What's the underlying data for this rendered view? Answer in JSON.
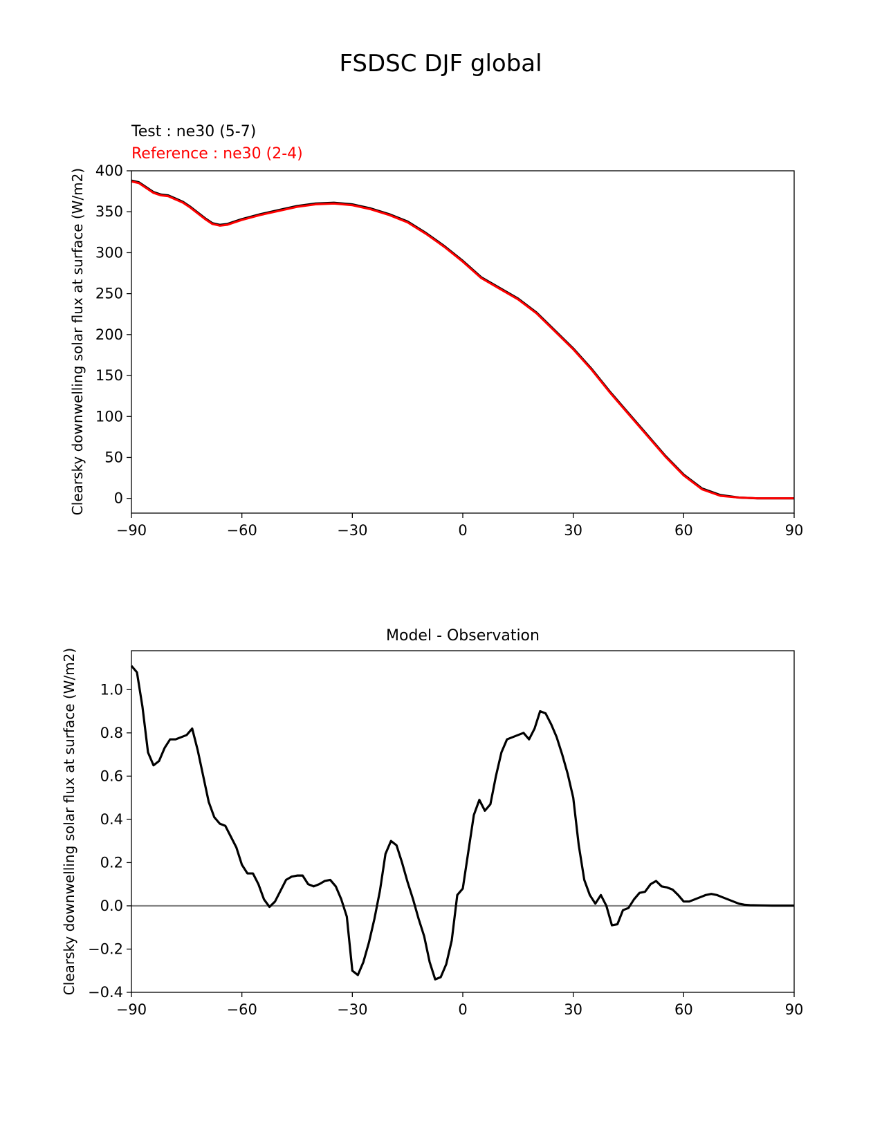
{
  "figure": {
    "suptitle": "FSDSC DJF global"
  },
  "chart_data": [
    {
      "type": "line",
      "title": "",
      "test_label": "Test : ne30 (5-7)",
      "reference_label": "Reference : ne30 (2-4)",
      "xlabel": "",
      "ylabel": "Clearsky downwelling solar flux at surface (W/m2)",
      "xlim": [
        -90,
        90
      ],
      "ylim": [
        -18,
        400
      ],
      "xticks": [
        -90,
        -60,
        -30,
        0,
        30,
        60,
        90
      ],
      "xtick_labels": [
        "−90",
        "−60",
        "−30",
        "0",
        "30",
        "60",
        "90"
      ],
      "yticks": [
        0,
        50,
        100,
        150,
        200,
        250,
        300,
        350,
        400
      ],
      "ytick_labels": [
        "0",
        "50",
        "100",
        "150",
        "200",
        "250",
        "300",
        "350",
        "400"
      ],
      "grid": false,
      "colors": {
        "test": "#000000",
        "reference": "#ff0000"
      },
      "series": [
        {
          "x": [
            -90,
            -88,
            -86,
            -84,
            -82,
            -80,
            -78,
            -76,
            -74,
            -72,
            -70,
            -68,
            -66,
            -64,
            -62,
            -60,
            -55,
            -50,
            -45,
            -40,
            -35,
            -30,
            -25,
            -20,
            -15,
            -10,
            -5,
            0,
            5,
            10,
            15,
            20,
            25,
            30,
            35,
            40,
            45,
            50,
            55,
            60,
            65,
            70,
            75,
            80,
            85,
            90
          ],
          "y": [
            388,
            386,
            380,
            374,
            371,
            370,
            366,
            362,
            356,
            349,
            342,
            336,
            334,
            335,
            338,
            341,
            347,
            352,
            357,
            360,
            361,
            359,
            354,
            347,
            338,
            324,
            308,
            290,
            270,
            257,
            244,
            227,
            205,
            183,
            158,
            130,
            104,
            78,
            52,
            29,
            12,
            4,
            1,
            0,
            0,
            0
          ],
          "role": "test"
        },
        {
          "x": [
            -90,
            -88,
            -86,
            -84,
            -82,
            -80,
            -78,
            -76,
            -74,
            -72,
            -70,
            -68,
            -66,
            -64,
            -62,
            -60,
            -55,
            -50,
            -45,
            -40,
            -35,
            -30,
            -25,
            -20,
            -15,
            -10,
            -5,
            0,
            5,
            10,
            15,
            20,
            25,
            30,
            35,
            40,
            45,
            50,
            55,
            60,
            65,
            70,
            75,
            80,
            85,
            90
          ],
          "y": [
            387,
            385,
            379,
            373,
            370,
            369,
            365,
            361,
            355,
            348,
            341,
            335,
            333,
            334,
            337,
            340,
            346,
            351,
            356,
            359,
            360,
            358,
            353,
            346,
            337,
            323,
            307,
            289,
            269,
            256,
            243,
            226,
            204,
            182,
            157,
            129,
            103,
            77,
            51,
            28,
            11,
            3,
            1,
            0,
            0,
            0
          ],
          "role": "reference"
        }
      ]
    },
    {
      "type": "line",
      "title": "Model - Observation",
      "xlabel": "",
      "ylabel": "Clearsky downwelling solar flux at surface (W/m2)",
      "xlim": [
        -90,
        90
      ],
      "ylim": [
        -0.4,
        1.18
      ],
      "xticks": [
        -90,
        -60,
        -30,
        0,
        30,
        60,
        90
      ],
      "xtick_labels": [
        "−90",
        "−60",
        "−30",
        "0",
        "30",
        "60",
        "90"
      ],
      "yticks": [
        -0.4,
        -0.2,
        0.0,
        0.2,
        0.4,
        0.6,
        0.8,
        1.0
      ],
      "ytick_labels": [
        "−0.4",
        "−0.2",
        "0.0",
        "0.2",
        "0.4",
        "0.6",
        "0.8",
        "1.0"
      ],
      "grid": false,
      "zero_line": 0,
      "colors": {
        "difference": "#000000",
        "zero_line": "#808080"
      },
      "series": [
        {
          "x": [
            -90,
            -88.5,
            -87,
            -85.5,
            -84,
            -82.5,
            -81,
            -79.5,
            -78,
            -76.5,
            -75,
            -73.5,
            -72,
            -70.5,
            -69,
            -67.5,
            -66,
            -64.5,
            -63,
            -61.5,
            -60,
            -58.5,
            -57,
            -55.5,
            -54,
            -52.5,
            -51,
            -49.5,
            -48,
            -46.5,
            -45,
            -43.5,
            -42,
            -40.5,
            -39,
            -37.5,
            -36,
            -34.5,
            -33,
            -31.5,
            -30,
            -28.5,
            -27,
            -25.5,
            -24,
            -22.5,
            -21,
            -19.5,
            -18,
            -16.5,
            -15,
            -13.5,
            -12,
            -10.5,
            -9,
            -7.5,
            -6,
            -4.5,
            -3,
            -1.5,
            0,
            1.5,
            3,
            4.5,
            6,
            7.5,
            9,
            10.5,
            12,
            13.5,
            15,
            16.5,
            18,
            19.5,
            21,
            22.5,
            24,
            25.5,
            27,
            28.5,
            30,
            31.5,
            33,
            34.5,
            36,
            37.5,
            39,
            40.5,
            42,
            43.5,
            45,
            46.5,
            48,
            49.5,
            51,
            52.5,
            54,
            55.5,
            57,
            58.5,
            60,
            61.5,
            63,
            64.5,
            66,
            67.5,
            69,
            70.5,
            72,
            73.5,
            75,
            76.5,
            78,
            81,
            84,
            87,
            90
          ],
          "y": [
            1.11,
            1.08,
            0.92,
            0.71,
            0.65,
            0.67,
            0.73,
            0.77,
            0.77,
            0.78,
            0.79,
            0.82,
            0.72,
            0.6,
            0.48,
            0.41,
            0.38,
            0.37,
            0.32,
            0.27,
            0.19,
            0.15,
            0.15,
            0.1,
            0.03,
            -0.005,
            0.02,
            0.07,
            0.12,
            0.135,
            0.14,
            0.14,
            0.1,
            0.09,
            0.1,
            0.115,
            0.12,
            0.09,
            0.03,
            -0.05,
            -0.3,
            -0.32,
            -0.26,
            -0.17,
            -0.06,
            0.07,
            0.24,
            0.3,
            0.28,
            0.2,
            0.11,
            0.03,
            -0.06,
            -0.14,
            -0.26,
            -0.34,
            -0.33,
            -0.27,
            -0.16,
            0.05,
            0.08,
            0.25,
            0.42,
            0.49,
            0.44,
            0.47,
            0.6,
            0.71,
            0.77,
            0.78,
            0.79,
            0.8,
            0.77,
            0.82,
            0.9,
            0.89,
            0.84,
            0.78,
            0.7,
            0.61,
            0.5,
            0.28,
            0.12,
            0.05,
            0.01,
            0.05,
            0.0,
            -0.09,
            -0.085,
            -0.02,
            -0.01,
            0.03,
            0.06,
            0.065,
            0.1,
            0.115,
            0.09,
            0.085,
            0.075,
            0.05,
            0.02,
            0.02,
            0.03,
            0.04,
            0.05,
            0.055,
            0.05,
            0.04,
            0.03,
            0.02,
            0.01,
            0.005,
            0.003,
            0.002,
            0.001,
            0.001,
            0.001
          ],
          "role": "difference"
        }
      ]
    }
  ]
}
